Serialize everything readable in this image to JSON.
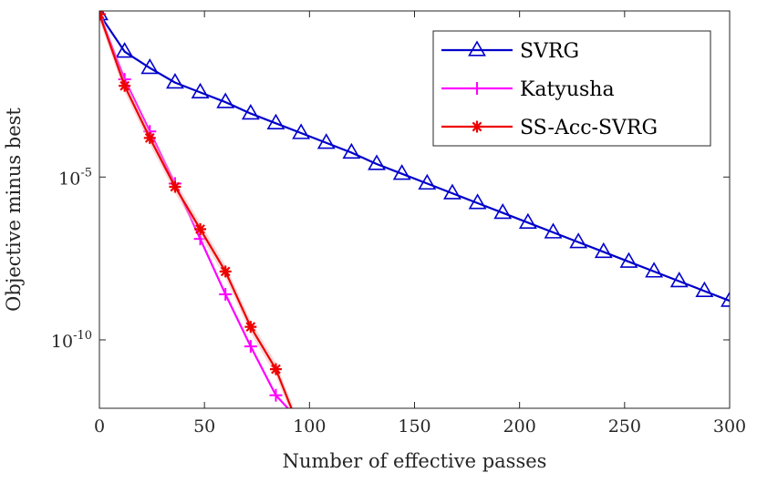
{
  "chart_data": {
    "type": "line",
    "xlabel": "Number of effective passes",
    "ylabel": "Objective minus best",
    "xlim": [
      0,
      300
    ],
    "ylim_log10": [
      -12.1,
      0.1
    ],
    "yscale": "log",
    "x_ticks": [
      0,
      50,
      100,
      150,
      200,
      250,
      300
    ],
    "x_tick_labels": [
      "0",
      "50",
      "100",
      "150",
      "200",
      "250",
      "300"
    ],
    "y_ticks_exp": [
      -5,
      -10
    ],
    "y_tick_base": "10",
    "y_tick_exps": [
      "-5",
      "-10"
    ],
    "grid": false,
    "legend_position": "top-right",
    "series": [
      {
        "name": "SVRG",
        "color": "#0000cc",
        "marker": "triangle",
        "x": [
          0,
          12,
          24,
          36,
          48,
          60,
          72,
          84,
          96,
          108,
          120,
          132,
          144,
          156,
          168,
          180,
          192,
          204,
          216,
          228,
          240,
          252,
          264,
          276,
          288,
          300
        ],
        "y_log10": [
          0.0,
          -1.15,
          -1.65,
          -2.1,
          -2.4,
          -2.7,
          -3.05,
          -3.35,
          -3.65,
          -3.95,
          -4.25,
          -4.6,
          -4.9,
          -5.2,
          -5.5,
          -5.8,
          -6.1,
          -6.4,
          -6.7,
          -7.0,
          -7.3,
          -7.6,
          -7.9,
          -8.2,
          -8.5,
          -8.8
        ]
      },
      {
        "name": "Katyusha",
        "color": "#ff00ff",
        "marker": "plus",
        "x": [
          0,
          12,
          24,
          36,
          48,
          60,
          72,
          84,
          94
        ],
        "y_log10": [
          0.0,
          -2.0,
          -3.6,
          -5.2,
          -6.9,
          -8.6,
          -10.2,
          -11.7,
          -12.4
        ]
      },
      {
        "name": "SS-Acc-SVRG",
        "color": "#ee0000",
        "marker": "asterisk",
        "x": [
          0,
          12,
          24,
          36,
          48,
          60,
          72,
          84,
          92
        ],
        "y_log10": [
          0.0,
          -2.2,
          -3.8,
          -5.3,
          -6.6,
          -7.9,
          -9.6,
          -10.9,
          -12.2
        ]
      }
    ]
  }
}
